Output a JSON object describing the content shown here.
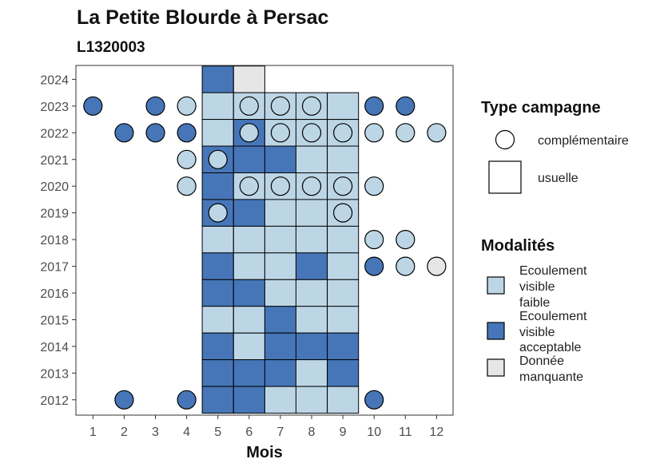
{
  "chart_data": {
    "type": "heatmap",
    "title": "La Petite Blourde à Persac",
    "subtitle": "L1320003",
    "xlabel": "Mois",
    "ylabel": "",
    "x_ticks": [
      "1",
      "2",
      "3",
      "4",
      "5",
      "6",
      "7",
      "8",
      "9",
      "10",
      "11",
      "12"
    ],
    "y_ticks": [
      "2012",
      "2013",
      "2014",
      "2015",
      "2016",
      "2017",
      "2018",
      "2019",
      "2020",
      "2021",
      "2022",
      "2023",
      "2024"
    ],
    "colors": {
      "faible": "#bcd6e6",
      "acceptable": "#4676b8",
      "manquante": "#e6e6e6"
    },
    "legend_type": {
      "title": "Type campagne",
      "items": [
        {
          "label": "complémentaire",
          "shape": "circle"
        },
        {
          "label": "usuelle",
          "shape": "square"
        }
      ]
    },
    "legend_modalites": {
      "title": "Modalités",
      "items": [
        {
          "key": "faible",
          "lines": [
            "Ecoulement",
            "visible",
            "faible"
          ]
        },
        {
          "key": "acceptable",
          "lines": [
            "Ecoulement",
            "visible",
            "acceptable"
          ]
        },
        {
          "key": "manquante",
          "lines": [
            "Donnée",
            "manquante"
          ]
        }
      ]
    },
    "tiles": [
      {
        "year": 2024,
        "month": 5,
        "mod": "acceptable"
      },
      {
        "year": 2024,
        "month": 6,
        "mod": "manquante"
      },
      {
        "year": 2023,
        "month": 5,
        "mod": "faible"
      },
      {
        "year": 2023,
        "month": 6,
        "mod": "faible"
      },
      {
        "year": 2023,
        "month": 7,
        "mod": "faible"
      },
      {
        "year": 2023,
        "month": 8,
        "mod": "faible"
      },
      {
        "year": 2023,
        "month": 9,
        "mod": "faible"
      },
      {
        "year": 2022,
        "month": 5,
        "mod": "faible"
      },
      {
        "year": 2022,
        "month": 6,
        "mod": "acceptable"
      },
      {
        "year": 2022,
        "month": 7,
        "mod": "faible"
      },
      {
        "year": 2022,
        "month": 8,
        "mod": "faible"
      },
      {
        "year": 2022,
        "month": 9,
        "mod": "faible"
      },
      {
        "year": 2021,
        "month": 5,
        "mod": "acceptable"
      },
      {
        "year": 2021,
        "month": 6,
        "mod": "acceptable"
      },
      {
        "year": 2021,
        "month": 7,
        "mod": "acceptable"
      },
      {
        "year": 2021,
        "month": 8,
        "mod": "faible"
      },
      {
        "year": 2021,
        "month": 9,
        "mod": "faible"
      },
      {
        "year": 2020,
        "month": 5,
        "mod": "acceptable"
      },
      {
        "year": 2020,
        "month": 6,
        "mod": "faible"
      },
      {
        "year": 2020,
        "month": 7,
        "mod": "faible"
      },
      {
        "year": 2020,
        "month": 8,
        "mod": "faible"
      },
      {
        "year": 2020,
        "month": 9,
        "mod": "faible"
      },
      {
        "year": 2019,
        "month": 5,
        "mod": "acceptable"
      },
      {
        "year": 2019,
        "month": 6,
        "mod": "acceptable"
      },
      {
        "year": 2019,
        "month": 7,
        "mod": "faible"
      },
      {
        "year": 2019,
        "month": 8,
        "mod": "faible"
      },
      {
        "year": 2019,
        "month": 9,
        "mod": "faible"
      },
      {
        "year": 2018,
        "month": 5,
        "mod": "faible"
      },
      {
        "year": 2018,
        "month": 6,
        "mod": "faible"
      },
      {
        "year": 2018,
        "month": 7,
        "mod": "faible"
      },
      {
        "year": 2018,
        "month": 8,
        "mod": "faible"
      },
      {
        "year": 2018,
        "month": 9,
        "mod": "faible"
      },
      {
        "year": 2017,
        "month": 5,
        "mod": "acceptable"
      },
      {
        "year": 2017,
        "month": 6,
        "mod": "faible"
      },
      {
        "year": 2017,
        "month": 7,
        "mod": "faible"
      },
      {
        "year": 2017,
        "month": 8,
        "mod": "acceptable"
      },
      {
        "year": 2017,
        "month": 9,
        "mod": "faible"
      },
      {
        "year": 2016,
        "month": 5,
        "mod": "acceptable"
      },
      {
        "year": 2016,
        "month": 6,
        "mod": "acceptable"
      },
      {
        "year": 2016,
        "month": 7,
        "mod": "faible"
      },
      {
        "year": 2016,
        "month": 8,
        "mod": "faible"
      },
      {
        "year": 2016,
        "month": 9,
        "mod": "faible"
      },
      {
        "year": 2015,
        "month": 5,
        "mod": "faible"
      },
      {
        "year": 2015,
        "month": 6,
        "mod": "faible"
      },
      {
        "year": 2015,
        "month": 7,
        "mod": "acceptable"
      },
      {
        "year": 2015,
        "month": 8,
        "mod": "faible"
      },
      {
        "year": 2015,
        "month": 9,
        "mod": "faible"
      },
      {
        "year": 2014,
        "month": 5,
        "mod": "acceptable"
      },
      {
        "year": 2014,
        "month": 6,
        "mod": "faible"
      },
      {
        "year": 2014,
        "month": 7,
        "mod": "acceptable"
      },
      {
        "year": 2014,
        "month": 8,
        "mod": "acceptable"
      },
      {
        "year": 2014,
        "month": 9,
        "mod": "acceptable"
      },
      {
        "year": 2013,
        "month": 5,
        "mod": "acceptable"
      },
      {
        "year": 2013,
        "month": 6,
        "mod": "acceptable"
      },
      {
        "year": 2013,
        "month": 7,
        "mod": "acceptable"
      },
      {
        "year": 2013,
        "month": 8,
        "mod": "faible"
      },
      {
        "year": 2013,
        "month": 9,
        "mod": "acceptable"
      },
      {
        "year": 2012,
        "month": 5,
        "mod": "acceptable"
      },
      {
        "year": 2012,
        "month": 6,
        "mod": "acceptable"
      },
      {
        "year": 2012,
        "month": 7,
        "mod": "faible"
      },
      {
        "year": 2012,
        "month": 8,
        "mod": "faible"
      },
      {
        "year": 2012,
        "month": 9,
        "mod": "faible"
      }
    ],
    "points": [
      {
        "year": 2023,
        "month": 1,
        "mod": "acceptable"
      },
      {
        "year": 2023,
        "month": 3,
        "mod": "acceptable"
      },
      {
        "year": 2023,
        "month": 4,
        "mod": "faible"
      },
      {
        "year": 2023,
        "month": 6,
        "mod": "faible"
      },
      {
        "year": 2023,
        "month": 7,
        "mod": "faible"
      },
      {
        "year": 2023,
        "month": 8,
        "mod": "faible"
      },
      {
        "year": 2023,
        "month": 10,
        "mod": "acceptable"
      },
      {
        "year": 2023,
        "month": 11,
        "mod": "acceptable"
      },
      {
        "year": 2022,
        "month": 2,
        "mod": "acceptable"
      },
      {
        "year": 2022,
        "month": 3,
        "mod": "acceptable"
      },
      {
        "year": 2022,
        "month": 4,
        "mod": "acceptable"
      },
      {
        "year": 2022,
        "month": 6,
        "mod": "faible"
      },
      {
        "year": 2022,
        "month": 7,
        "mod": "faible"
      },
      {
        "year": 2022,
        "month": 8,
        "mod": "faible"
      },
      {
        "year": 2022,
        "month": 9,
        "mod": "faible"
      },
      {
        "year": 2022,
        "month": 10,
        "mod": "faible"
      },
      {
        "year": 2022,
        "month": 11,
        "mod": "faible"
      },
      {
        "year": 2022,
        "month": 12,
        "mod": "faible"
      },
      {
        "year": 2021,
        "month": 4,
        "mod": "faible"
      },
      {
        "year": 2021,
        "month": 5,
        "mod": "faible"
      },
      {
        "year": 2020,
        "month": 4,
        "mod": "faible"
      },
      {
        "year": 2020,
        "month": 6,
        "mod": "faible"
      },
      {
        "year": 2020,
        "month": 7,
        "mod": "faible"
      },
      {
        "year": 2020,
        "month": 8,
        "mod": "faible"
      },
      {
        "year": 2020,
        "month": 9,
        "mod": "faible"
      },
      {
        "year": 2020,
        "month": 10,
        "mod": "faible"
      },
      {
        "year": 2019,
        "month": 5,
        "mod": "faible"
      },
      {
        "year": 2019,
        "month": 9,
        "mod": "faible"
      },
      {
        "year": 2018,
        "month": 10,
        "mod": "faible"
      },
      {
        "year": 2018,
        "month": 11,
        "mod": "faible"
      },
      {
        "year": 2017,
        "month": 10,
        "mod": "acceptable"
      },
      {
        "year": 2017,
        "month": 11,
        "mod": "faible"
      },
      {
        "year": 2017,
        "month": 12,
        "mod": "manquante"
      },
      {
        "year": 2012,
        "month": 2,
        "mod": "acceptable"
      },
      {
        "year": 2012,
        "month": 4,
        "mod": "acceptable"
      },
      {
        "year": 2012,
        "month": 10,
        "mod": "acceptable"
      }
    ]
  }
}
